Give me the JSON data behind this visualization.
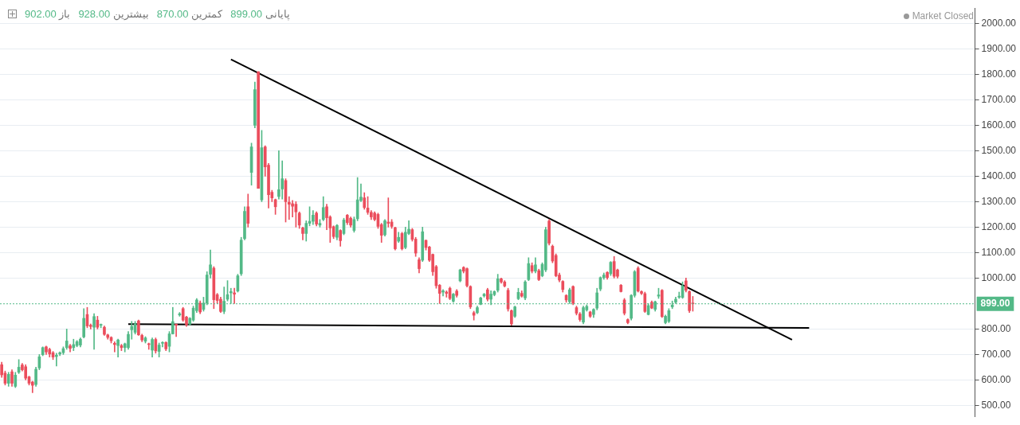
{
  "chart_data": {
    "type": "candlestick",
    "annotations": [
      "باز 902.00",
      "بیشترین 928.00",
      "کمترین 870.00",
      "پایانی 899.00",
      "Market Closed"
    ],
    "categories": [
      null,
      null,
      null,
      null,
      null,
      null,
      null,
      null,
      null,
      null,
      null,
      null,
      null,
      null,
      null,
      null,
      null,
      null,
      null,
      null,
      null,
      null,
      null,
      null,
      null,
      null,
      null,
      null,
      null,
      null,
      null,
      null,
      null,
      null,
      null,
      null,
      null,
      null,
      null,
      null,
      null,
      null,
      null,
      null,
      null,
      null,
      null,
      null,
      null,
      null,
      null,
      null,
      null,
      null,
      null,
      null,
      null,
      null,
      null,
      null,
      null,
      null,
      null,
      null,
      null,
      null,
      null,
      null,
      null,
      null,
      null,
      null,
      null,
      null,
      null,
      null,
      null,
      null,
      null,
      null,
      null,
      null,
      null,
      null,
      null,
      null,
      null,
      null,
      null,
      null,
      null,
      null,
      null,
      null,
      null,
      null,
      null,
      null,
      null,
      null,
      null,
      null,
      null,
      null,
      null,
      null,
      null,
      null,
      null,
      null,
      null,
      null,
      null,
      null,
      null,
      null,
      null,
      null,
      null,
      null,
      null,
      null,
      null,
      null,
      null,
      null,
      null,
      null,
      null,
      null,
      null,
      null,
      null,
      null,
      null,
      null,
      null,
      null,
      null,
      null,
      null,
      null,
      null,
      null,
      null,
      null,
      null,
      null,
      null,
      null,
      null,
      null,
      null,
      null,
      null,
      null,
      null,
      null,
      null,
      null,
      null,
      null,
      null,
      null,
      null,
      null,
      null,
      null,
      null,
      null,
      null,
      null,
      null,
      null,
      null,
      null,
      null,
      null,
      null,
      null,
      null,
      null,
      null,
      null,
      null,
      null,
      null,
      null,
      null,
      null,
      null,
      null,
      null,
      null,
      null,
      null,
      null,
      null,
      null,
      null,
      null,
      null,
      null,
      null,
      null,
      null,
      null,
      null,
      null,
      null,
      null,
      null,
      null,
      null,
      null,
      null,
      null,
      null,
      null,
      null,
      null,
      null,
      null,
      null,
      null,
      null,
      null,
      null,
      null,
      null,
      null,
      null,
      null,
      null,
      null,
      null,
      null,
      null,
      null,
      null,
      null,
      null,
      null,
      null,
      null,
      null,
      null,
      null,
      null,
      null,
      null,
      null,
      null,
      null,
      null,
      null,
      null,
      null,
      null,
      null,
      null,
      null,
      null,
      null,
      null,
      null,
      null,
      null,
      null,
      null,
      null,
      null,
      null,
      null,
      null,
      null,
      null,
      null,
      null,
      null,
      null,
      null,
      null,
      null,
      null
    ],
    "ohlc": [
      [
        660,
        670,
        610,
        620
      ],
      [
        627,
        635,
        580,
        587
      ],
      [
        587,
        630,
        575,
        622
      ],
      [
        632,
        640,
        575,
        587
      ],
      [
        575,
        630,
        570,
        619
      ],
      [
        630,
        680,
        625,
        650
      ],
      [
        659,
        665,
        635,
        640
      ],
      [
        652,
        660,
        600,
        607
      ],
      [
        612,
        615,
        580,
        587
      ],
      [
        592,
        595,
        550,
        579
      ],
      [
        582,
        650,
        575,
        642
      ],
      [
        647,
        700,
        640,
        691
      ],
      [
        699,
        730,
        695,
        727
      ],
      [
        730,
        733,
        700,
        710
      ],
      [
        720,
        725,
        690,
        702
      ],
      [
        707,
        712,
        680,
        690
      ],
      [
        692,
        705,
        655,
        697
      ],
      [
        702,
        710,
        695,
        707
      ],
      [
        707,
        730,
        700,
        723
      ],
      [
        727,
        800,
        720,
        753
      ],
      [
        734,
        740,
        710,
        724
      ],
      [
        727,
        760,
        715,
        739
      ],
      [
        735,
        755,
        730,
        750
      ],
      [
        737,
        765,
        730,
        760
      ],
      [
        769,
        880,
        765,
        842
      ],
      [
        857,
        885,
        805,
        812
      ],
      [
        815,
        820,
        800,
        810
      ],
      [
        807,
        860,
        720,
        849
      ],
      [
        835,
        850,
        800,
        807
      ],
      [
        815,
        820,
        805,
        817
      ],
      [
        807,
        812,
        775,
        779
      ],
      [
        777,
        780,
        760,
        767
      ],
      [
        767,
        770,
        745,
        754
      ],
      [
        744,
        750,
        710,
        739
      ],
      [
        735,
        760,
        690,
        757
      ],
      [
        735,
        740,
        715,
        727
      ],
      [
        727,
        745,
        710,
        742
      ],
      [
        727,
        790,
        720,
        779
      ],
      [
        797,
        830,
        760,
        810
      ],
      [
        787,
        830,
        780,
        820
      ],
      [
        832,
        835,
        775,
        777
      ],
      [
        775,
        780,
        750,
        757
      ],
      [
        752,
        770,
        745,
        765
      ],
      [
        740,
        745,
        720,
        739
      ],
      [
        717,
        765,
        690,
        759
      ],
      [
        759,
        765,
        705,
        714
      ],
      [
        712,
        745,
        690,
        737
      ],
      [
        744,
        750,
        730,
        747
      ],
      [
        747,
        750,
        715,
        722
      ],
      [
        732,
        790,
        710,
        781
      ],
      [
        781,
        885,
        780,
        829
      ],
      [
        819,
        820,
        770,
        815
      ],
      [
        855,
        865,
        850,
        860
      ],
      [
        880,
        885,
        830,
        835
      ],
      [
        847,
        850,
        810,
        817
      ],
      [
        819,
        845,
        815,
        842
      ],
      [
        835,
        890,
        830,
        882
      ],
      [
        872,
        920,
        865,
        914
      ],
      [
        902,
        910,
        860,
        867
      ],
      [
        877,
        925,
        870,
        902
      ],
      [
        902,
        1025,
        895,
        1012
      ],
      [
        1015,
        1110,
        1000,
        1052
      ],
      [
        1039,
        1045,
        880,
        915
      ],
      [
        935,
        940,
        900,
        912
      ],
      [
        917,
        925,
        865,
        869
      ],
      [
        869,
        965,
        860,
        909
      ],
      [
        917,
        990,
        910,
        935
      ],
      [
        942,
        960,
        900,
        947
      ],
      [
        942,
        960,
        900,
        937
      ],
      [
        949,
        1015,
        945,
        1009
      ],
      [
        1017,
        1160,
        1010,
        1149
      ],
      [
        1155,
        1280,
        1150,
        1262
      ],
      [
        1280,
        1330,
        1200,
        1215
      ],
      [
        1415,
        1530,
        1365,
        1515
      ],
      [
        1600,
        1770,
        1590,
        1740
      ],
      [
        1810,
        1810,
        1352,
        1352
      ],
      [
        1307,
        1580,
        1300,
        1512
      ],
      [
        1515,
        1520,
        1400,
        1437
      ],
      [
        1443,
        1450,
        1275,
        1327
      ],
      [
        1337,
        1345,
        1300,
        1315
      ],
      [
        1308,
        1310,
        1250,
        1280
      ],
      [
        1320,
        1500,
        1310,
        1347
      ],
      [
        1350,
        1460,
        1310,
        1390
      ],
      [
        1383,
        1390,
        1220,
        1300
      ],
      [
        1298,
        1320,
        1230,
        1290
      ],
      [
        1292,
        1305,
        1240,
        1282
      ],
      [
        1290,
        1300,
        1200,
        1260
      ],
      [
        1255,
        1260,
        1195,
        1208
      ],
      [
        1197,
        1200,
        1150,
        1175
      ],
      [
        1175,
        1225,
        1145,
        1215
      ],
      [
        1215,
        1280,
        1205,
        1223
      ],
      [
        1223,
        1265,
        1210,
        1247
      ],
      [
        1255,
        1260,
        1205,
        1212
      ],
      [
        1208,
        1230,
        1200,
        1215
      ],
      [
        1230,
        1320,
        1225,
        1277
      ],
      [
        1280,
        1290,
        1190,
        1237
      ],
      [
        1240,
        1245,
        1140,
        1197
      ],
      [
        1202,
        1205,
        1155,
        1163
      ],
      [
        1160,
        1210,
        1150,
        1207
      ],
      [
        1187,
        1190,
        1125,
        1147
      ],
      [
        1175,
        1235,
        1170,
        1228
      ],
      [
        1247,
        1250,
        1210,
        1218
      ],
      [
        1235,
        1240,
        1200,
        1208
      ],
      [
        1187,
        1240,
        1180,
        1230
      ],
      [
        1233,
        1395,
        1225,
        1307
      ],
      [
        1305,
        1370,
        1300,
        1318
      ],
      [
        1315,
        1335,
        1270,
        1277
      ],
      [
        1275,
        1320,
        1250,
        1258
      ],
      [
        1258,
        1265,
        1230,
        1240
      ],
      [
        1255,
        1260,
        1225,
        1230
      ],
      [
        1250,
        1255,
        1195,
        1203
      ],
      [
        1210,
        1215,
        1140,
        1168
      ],
      [
        1170,
        1230,
        1165,
        1225
      ],
      [
        1220,
        1315,
        1200,
        1215
      ],
      [
        1220,
        1230,
        1195,
        1203
      ],
      [
        1198,
        1200,
        1110,
        1115
      ],
      [
        1145,
        1180,
        1140,
        1160
      ],
      [
        1175,
        1180,
        1110,
        1115
      ],
      [
        1120,
        1200,
        1115,
        1180
      ],
      [
        1175,
        1225,
        1170,
        1192
      ],
      [
        1190,
        1195,
        1145,
        1152
      ],
      [
        1153,
        1160,
        1085,
        1098
      ],
      [
        1072,
        1080,
        1020,
        1037
      ],
      [
        1070,
        1200,
        1065,
        1182
      ],
      [
        1148,
        1150,
        1110,
        1120
      ],
      [
        1122,
        1125,
        1065,
        1070
      ],
      [
        1093,
        1095,
        1010,
        1025
      ],
      [
        1045,
        1050,
        960,
        970
      ],
      [
        972,
        975,
        900,
        940
      ],
      [
        945,
        955,
        930,
        950
      ],
      [
        945,
        950,
        925,
        940
      ],
      [
        960,
        965,
        915,
        920
      ],
      [
        909,
        940,
        905,
        937
      ],
      [
        949,
        955,
        925,
        932
      ],
      [
        989,
        1035,
        985,
        1032
      ],
      [
        1042,
        1045,
        1020,
        1027
      ],
      [
        1037,
        1040,
        965,
        970
      ],
      [
        967,
        970,
        880,
        887
      ],
      [
        864,
        870,
        835,
        854
      ],
      [
        864,
        890,
        860,
        884
      ],
      [
        897,
        925,
        895,
        922
      ],
      [
        930,
        940,
        925,
        937
      ],
      [
        954,
        960,
        910,
        917
      ],
      [
        917,
        950,
        895,
        937
      ],
      [
        935,
        950,
        930,
        947
      ],
      [
        952,
        1015,
        945,
        997
      ],
      [
        997,
        1000,
        980,
        985
      ],
      [
        985,
        990,
        965,
        969
      ],
      [
        952,
        960,
        870,
        879
      ],
      [
        872,
        875,
        815,
        820
      ],
      [
        850,
        890,
        845,
        887
      ],
      [
        919,
        960,
        915,
        944
      ],
      [
        940,
        950,
        925,
        929
      ],
      [
        922,
        990,
        915,
        985
      ],
      [
        994,
        1080,
        990,
        1057
      ],
      [
        1049,
        1060,
        1020,
        1027
      ],
      [
        1027,
        1080,
        1020,
        1052
      ],
      [
        1029,
        1035,
        990,
        994
      ],
      [
        1009,
        1060,
        1005,
        1054
      ],
      [
        1032,
        1200,
        1025,
        1190
      ],
      [
        1224,
        1230,
        1130,
        1137
      ],
      [
        1125,
        1130,
        1060,
        1067
      ],
      [
        1089,
        1095,
        1005,
        1009
      ],
      [
        1012,
        1020,
        985,
        992
      ],
      [
        987,
        990,
        945,
        955
      ],
      [
        932,
        935,
        905,
        914
      ],
      [
        907,
        960,
        900,
        954
      ],
      [
        967,
        970,
        895,
        902
      ],
      [
        884,
        890,
        855,
        862
      ],
      [
        859,
        865,
        830,
        837
      ],
      [
        827,
        890,
        820,
        884
      ],
      [
        875,
        895,
        870,
        889
      ],
      [
        867,
        870,
        845,
        850
      ],
      [
        857,
        880,
        845,
        877
      ],
      [
        882,
        960,
        875,
        942
      ],
      [
        957,
        1005,
        950,
        1002
      ],
      [
        1002,
        1020,
        995,
        1012
      ],
      [
        1022,
        1025,
        995,
        1002
      ],
      [
        1017,
        1065,
        1010,
        1062
      ],
      [
        1065,
        1085,
        1000,
        1007
      ],
      [
        1032,
        1035,
        1000,
        1007
      ],
      [
        972,
        975,
        945,
        947
      ],
      [
        914,
        920,
        855,
        862
      ],
      [
        837,
        840,
        820,
        825
      ],
      [
        842,
        935,
        835,
        932
      ],
      [
        932,
        1030,
        925,
        1025
      ],
      [
        1039,
        1045,
        945,
        949
      ],
      [
        947,
        950,
        935,
        940
      ],
      [
        939,
        945,
        865,
        869
      ],
      [
        857,
        900,
        855,
        892
      ],
      [
        905,
        910,
        880,
        882
      ],
      [
        877,
        910,
        870,
        907
      ],
      [
        929,
        960,
        920,
        934
      ],
      [
        952,
        955,
        845,
        849
      ],
      [
        825,
        855,
        820,
        850
      ],
      [
        830,
        880,
        825,
        872
      ],
      [
        887,
        910,
        880,
        894
      ],
      [
        905,
        925,
        900,
        917
      ],
      [
        925,
        945,
        920,
        929
      ],
      [
        924,
        985,
        920,
        969
      ],
      [
        989,
        1000,
        945,
        952
      ],
      [
        947,
        950,
        865,
        872
      ],
      [
        902,
        928,
        870,
        899
      ],
      null,
      null,
      null,
      null,
      null,
      null,
      null,
      null,
      null,
      null,
      null,
      null,
      null,
      null,
      null,
      null,
      null,
      null,
      null,
      null,
      null,
      null,
      null,
      null,
      null,
      null,
      null,
      null,
      null,
      null,
      null,
      null,
      null,
      null,
      null,
      null,
      null,
      null,
      null,
      null,
      null,
      null,
      null,
      null,
      null,
      null,
      null,
      null,
      null,
      null,
      null,
      null,
      null,
      null,
      null,
      null,
      null,
      null,
      null,
      null,
      null,
      null,
      null,
      null,
      null,
      null,
      null,
      null,
      null,
      null,
      null,
      null,
      null,
      null,
      null,
      null,
      null,
      null,
      null,
      null,
      null,
      null
    ],
    "colors": [
      "#eb4d5c",
      "#eb4d5c",
      "#53b987",
      "#eb4d5c",
      "#53b987",
      "#53b987",
      "#eb4d5c",
      "#eb4d5c",
      "#eb4d5c",
      "#eb4d5c",
      "#53b987",
      "#53b987",
      "#53b987",
      "#eb4d5c",
      "#eb4d5c",
      "#eb4d5c",
      "#53b987",
      "#53b987",
      "#53b987",
      "#53b987",
      "#eb4d5c",
      "#53b987",
      "#53b987",
      "#53b987",
      "#53b987",
      "#eb4d5c",
      "#eb4d5c",
      "#53b987",
      "#eb4d5c",
      "#53b987",
      "#eb4d5c",
      "#eb4d5c",
      "#eb4d5c",
      "#eb4d5c",
      "#53b987",
      "#eb4d5c",
      "#53b987",
      "#53b987",
      "#53b987",
      "#53b987",
      "#eb4d5c",
      "#eb4d5c",
      "#53b987",
      "#eb4d5c",
      "#53b987",
      "#eb4d5c",
      "#53b987",
      "#53b987",
      "#eb4d5c",
      "#53b987",
      "#53b987",
      "#eb4d5c",
      "#53b987",
      "#eb4d5c",
      "#eb4d5c",
      "#53b987",
      "#53b987",
      "#53b987",
      "#eb4d5c",
      "#53b987",
      "#53b987",
      "#53b987",
      "#eb4d5c",
      "#eb4d5c",
      "#eb4d5c",
      "#53b987",
      "#53b987",
      "#53b987",
      "#eb4d5c",
      "#53b987",
      "#53b987",
      "#53b987",
      "#eb4d5c",
      "#53b987",
      "#53b987",
      "#eb4d5c",
      "#53b987",
      "#eb4d5c",
      "#eb4d5c",
      "#eb4d5c",
      "#eb4d5c",
      "#53b987",
      "#53b987",
      "#eb4d5c",
      "#eb4d5c",
      "#eb4d5c",
      "#eb4d5c",
      "#eb4d5c",
      "#eb4d5c",
      "#53b987",
      "#53b987",
      "#53b987",
      "#eb4d5c",
      "#53b987",
      "#53b987",
      "#eb4d5c",
      "#eb4d5c",
      "#eb4d5c",
      "#53b987",
      "#eb4d5c",
      "#53b987",
      "#eb4d5c",
      "#eb4d5c",
      "#53b987",
      "#53b987",
      "#53b987",
      "#eb4d5c",
      "#eb4d5c",
      "#eb4d5c",
      "#eb4d5c",
      "#eb4d5c",
      "#eb4d5c",
      "#53b987",
      "#eb4d5c",
      "#eb4d5c",
      "#eb4d5c",
      "#53b987",
      "#eb4d5c",
      "#53b987",
      "#53b987",
      "#eb4d5c",
      "#eb4d5c",
      "#eb4d5c",
      "#53b987",
      "#eb4d5c",
      "#eb4d5c",
      "#eb4d5c",
      "#eb4d5c",
      "#eb4d5c",
      "#53b987",
      "#eb4d5c",
      "#eb4d5c",
      "#53b987",
      "#eb4d5c",
      "#53b987",
      "#eb4d5c",
      "#eb4d5c",
      "#eb4d5c",
      "#eb4d5c",
      "#53b987",
      "#53b987",
      "#53b987",
      "#eb4d5c",
      "#53b987",
      "#53b987",
      "#53b987",
      "#eb4d5c",
      "#eb4d5c",
      "#eb4d5c",
      "#eb4d5c",
      "#53b987",
      "#53b987",
      "#eb4d5c",
      "#53b987",
      "#53b987",
      "#eb4d5c",
      "#53b987",
      "#eb4d5c",
      "#53b987",
      "#53b987",
      "#eb4d5c",
      "#eb4d5c",
      "#eb4d5c",
      "#eb4d5c",
      "#eb4d5c",
      "#eb4d5c",
      "#53b987",
      "#eb4d5c",
      "#eb4d5c",
      "#eb4d5c",
      "#53b987",
      "#53b987",
      "#eb4d5c",
      "#53b987",
      "#53b987",
      "#53b987",
      "#53b987",
      "#eb4d5c",
      "#53b987",
      "#eb4d5c",
      "#eb4d5c",
      "#eb4d5c",
      "#eb4d5c",
      "#eb4d5c",
      "#53b987",
      "#53b987",
      "#eb4d5c",
      "#eb4d5c",
      "#eb4d5c",
      "#53b987",
      "#eb4d5c",
      "#53b987",
      "#53b987",
      "#eb4d5c",
      "#53b987",
      "#53b987",
      "#53b987",
      "#53b987",
      "#53b987",
      "#53b987",
      "#eb4d5c",
      "#eb4d5c",
      "#eb4d5c",
      null,
      null,
      null,
      null,
      null,
      null,
      null,
      null,
      null,
      null,
      null,
      null,
      null,
      null,
      null,
      null,
      null,
      null,
      null,
      null,
      null,
      null,
      null,
      null,
      null,
      null,
      null,
      null,
      null,
      null,
      null,
      null,
      null,
      null,
      null,
      null,
      null,
      null,
      null,
      null,
      null,
      null,
      null,
      null,
      null,
      null,
      null,
      null,
      null,
      null,
      null,
      null,
      null,
      null,
      null,
      null,
      null,
      null,
      null,
      null,
      null,
      null,
      null,
      null,
      null,
      null,
      null,
      null,
      null,
      null,
      null,
      null,
      null,
      null,
      null,
      null,
      null,
      null,
      null,
      null,
      null,
      null
    ],
    "series": [
      {
        "type": "line",
        "color": "#000000",
        "values": [
          null,
          null,
          null,
          null,
          null,
          null,
          null,
          null,
          null,
          null,
          null,
          null,
          null,
          null,
          null,
          null,
          null,
          null,
          null,
          null,
          null,
          null,
          null,
          null,
          null,
          null,
          null,
          null,
          null,
          null,
          null,
          null,
          null,
          null,
          null,
          null,
          null,
          null,
          null,
          null,
          null,
          null,
          null,
          null,
          null,
          null,
          null,
          null,
          null,
          null,
          null,
          null,
          null,
          null,
          null,
          null,
          null,
          null,
          null,
          null,
          null,
          null,
          null,
          null,
          null,
          null,
          null,
          1859,
          null,
          null,
          null,
          null,
          null,
          null,
          null,
          null,
          null,
          null,
          null,
          null,
          null,
          null,
          null,
          null,
          null,
          null,
          null,
          null,
          null,
          null,
          null,
          null,
          null,
          null,
          null,
          null,
          null,
          null,
          null,
          null,
          null,
          null,
          null,
          null,
          null,
          null,
          null,
          null,
          null,
          null,
          null,
          null,
          null,
          null,
          null,
          null,
          null,
          null,
          null,
          null,
          null,
          null,
          null,
          null,
          null,
          null,
          null,
          null,
          null,
          null,
          null,
          null,
          null,
          null,
          null,
          null,
          null,
          null,
          null,
          null,
          null,
          null,
          null,
          null,
          null,
          null,
          null,
          null,
          null,
          null,
          null,
          null,
          null,
          null,
          null,
          null,
          null,
          null,
          null,
          null,
          null,
          null,
          null,
          null,
          null,
          null,
          null,
          null,
          null,
          null,
          null,
          null,
          null,
          null,
          null,
          null,
          null,
          null,
          null,
          null,
          null,
          null,
          null,
          null,
          null,
          null,
          null,
          null,
          null,
          null,
          null,
          null,
          null,
          null,
          null,
          null,
          null,
          null,
          null,
          null,
          null,
          null,
          null,
          null,
          null,
          null,
          null,
          null,
          null,
          null,
          null,
          null,
          null,
          null,
          null,
          null,
          null,
          null,
          null,
          null,
          null,
          null,
          null,
          null,
          null,
          null,
          null,
          null,
          null,
          null,
          null,
          758,
          null,
          null,
          null,
          null,
          null,
          null,
          null,
          null,
          null,
          null,
          null,
          null,
          null,
          null,
          null,
          null,
          null,
          null,
          null,
          null,
          null,
          null,
          null,
          null,
          null,
          null,
          null,
          null,
          null,
          null,
          null,
          null,
          null,
          null,
          null,
          null,
          null,
          null,
          null,
          null,
          null,
          null,
          null,
          null,
          null,
          null,
          null,
          null,
          null,
          null,
          null,
          null,
          null
        ]
      },
      {
        "type": "line",
        "color": "#000000",
        "values": [
          null,
          null,
          null,
          null,
          null,
          null,
          null,
          null,
          null,
          null,
          null,
          null,
          null,
          null,
          null,
          null,
          null,
          null,
          null,
          null,
          null,
          null,
          null,
          null,
          null,
          null,
          null,
          null,
          null,
          null,
          null,
          null,
          null,
          null,
          null,
          null,
          null,
          819,
          null,
          null,
          null,
          null,
          null,
          null,
          null,
          null,
          null,
          null,
          null,
          null,
          null,
          null,
          null,
          null,
          null,
          null,
          null,
          null,
          null,
          null,
          null,
          null,
          null,
          null,
          null,
          null,
          null,
          null,
          null,
          null,
          null,
          null,
          null,
          null,
          null,
          null,
          null,
          null,
          null,
          null,
          null,
          null,
          null,
          null,
          null,
          null,
          null,
          null,
          null,
          null,
          null,
          null,
          null,
          null,
          null,
          null,
          null,
          null,
          null,
          null,
          null,
          null,
          null,
          null,
          null,
          null,
          null,
          null,
          null,
          null,
          null,
          null,
          null,
          null,
          null,
          null,
          null,
          null,
          null,
          null,
          null,
          null,
          null,
          null,
          null,
          null,
          null,
          null,
          null,
          null,
          null,
          null,
          null,
          null,
          null,
          null,
          null,
          null,
          null,
          null,
          null,
          null,
          null,
          null,
          null,
          null,
          null,
          null,
          null,
          null,
          null,
          null,
          null,
          null,
          null,
          null,
          null,
          null,
          null,
          null,
          null,
          null,
          null,
          null,
          null,
          null,
          null,
          null,
          null,
          null,
          null,
          null,
          null,
          null,
          null,
          null,
          null,
          null,
          null,
          null,
          null,
          null,
          null,
          null,
          null,
          null,
          null,
          null,
          null,
          null,
          null,
          null,
          null,
          null,
          null,
          null,
          null,
          null,
          null,
          null,
          null,
          null,
          null,
          null,
          null,
          null,
          null,
          null,
          null,
          null,
          null,
          null,
          null,
          null,
          null,
          null,
          null,
          null,
          null,
          null,
          null,
          null,
          null,
          null,
          null,
          null,
          null,
          null,
          null,
          null,
          null,
          null,
          null,
          null,
          null,
          null,
          804,
          null,
          null,
          null,
          null,
          null,
          null,
          null,
          null,
          null,
          null,
          null,
          null,
          null,
          null,
          null,
          null,
          null,
          null,
          null,
          null,
          null,
          null,
          null,
          null,
          null,
          null,
          null,
          null,
          null,
          null,
          null,
          null,
          null,
          null,
          null,
          null,
          null,
          null,
          null,
          null,
          null,
          null,
          null,
          null,
          null,
          null,
          null,
          null
        ]
      }
    ],
    "ref_lines": [
      {
        "axis": "y",
        "value": 899,
        "label": "899.00",
        "color": "#53b987",
        "line_style": "dotted"
      }
    ],
    "ylim": [
      455,
      2060
    ],
    "yticks": [
      {
        "value": 500,
        "label": "500.00"
      },
      {
        "value": 600,
        "label": "600.00"
      },
      {
        "value": 700,
        "label": "700.00"
      },
      {
        "value": 800,
        "label": "800.00"
      },
      {
        "value": 1000,
        "label": "1000.00"
      },
      {
        "value": 1100,
        "label": "1100.00"
      },
      {
        "value": 1200,
        "label": "1200.00"
      },
      {
        "value": 1300,
        "label": "1300.00"
      },
      {
        "value": 1400,
        "label": "1400.00"
      },
      {
        "value": 1500,
        "label": "1500.00"
      },
      {
        "value": 1600,
        "label": "1600.00"
      },
      {
        "value": 1700,
        "label": "1700.00"
      },
      {
        "value": 1800,
        "label": "1800.00"
      },
      {
        "value": 1900,
        "label": "1900.00"
      },
      {
        "value": 2000,
        "label": "2000.00"
      }
    ],
    "grid": "y",
    "legend": false,
    "tick_labels": "y"
  }
}
